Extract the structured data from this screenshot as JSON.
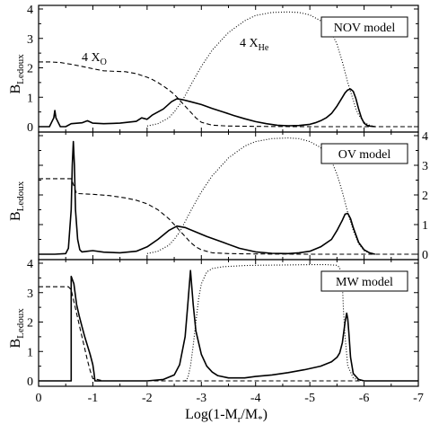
{
  "figure": {
    "ylabel_main": "B",
    "ylabel_sub": "Ledoux",
    "xlabel_pre": "Log(1-M",
    "xlabel_sub_r": "r",
    "xlabel_mid": "/M",
    "xlabel_sub_star": "*",
    "xlabel_post": ")",
    "annot_xo_main": "4 X",
    "annot_xo_sub": "O",
    "annot_xhe_main": "4 X",
    "annot_xhe_sub": "He"
  },
  "chart_data": [
    {
      "type": "line",
      "legend": "NOV model",
      "xlim": [
        0,
        -7
      ],
      "ylim": [
        0,
        4
      ],
      "yticks": [
        0,
        1,
        2,
        3,
        4
      ],
      "y_axis_side": "left",
      "series": [
        {
          "style": "solid",
          "x": [
            0,
            -0.2,
            -0.28,
            -0.3,
            -0.32,
            -0.4,
            -0.5,
            -0.6,
            -0.8,
            -0.9,
            -1.0,
            -1.2,
            -1.5,
            -1.8,
            -1.9,
            -2.0,
            -2.1,
            -2.3,
            -2.45,
            -2.55,
            -2.65,
            -2.8,
            -3.0,
            -3.2,
            -3.4,
            -3.6,
            -3.8,
            -4.0,
            -4.2,
            -4.4,
            -4.6,
            -4.8,
            -5.0,
            -5.1,
            -5.2,
            -5.3,
            -5.4,
            -5.5,
            -5.6,
            -5.65,
            -5.7,
            -5.75,
            -5.8,
            -5.85,
            -5.9,
            -5.95,
            -6.0,
            -6.05,
            -6.1,
            -6.2
          ],
          "y": [
            0,
            0,
            0.3,
            0.55,
            0.3,
            0,
            0,
            0.1,
            0.13,
            0.2,
            0.12,
            0.1,
            0.12,
            0.18,
            0.3,
            0.25,
            0.4,
            0.6,
            0.85,
            0.95,
            0.92,
            0.85,
            0.75,
            0.62,
            0.5,
            0.38,
            0.27,
            0.17,
            0.1,
            0.05,
            0.03,
            0.04,
            0.08,
            0.13,
            0.2,
            0.3,
            0.45,
            0.7,
            1.0,
            1.15,
            1.25,
            1.28,
            1.2,
            0.95,
            0.6,
            0.3,
            0.12,
            0.05,
            0.02,
            0
          ]
        },
        {
          "style": "dashed",
          "x": [
            0,
            -0.2,
            -0.4,
            -0.6,
            -0.8,
            -1.0,
            -1.2,
            -1.4,
            -1.6,
            -1.8,
            -2.0,
            -2.1,
            -2.2,
            -2.3,
            -2.4,
            -2.5,
            -2.6,
            -2.7,
            -2.8,
            -2.9,
            -3.0,
            -3.2,
            -3.5,
            -4.0,
            -5.0,
            -6.0,
            -7.0
          ],
          "y": [
            2.2,
            2.2,
            2.18,
            2.12,
            2.05,
            1.97,
            1.9,
            1.88,
            1.87,
            1.8,
            1.68,
            1.6,
            1.5,
            1.38,
            1.25,
            1.1,
            0.9,
            0.7,
            0.5,
            0.3,
            0.15,
            0.05,
            0.02,
            0.01,
            0,
            0,
            0
          ]
        },
        {
          "style": "dotted",
          "x": [
            -2.0,
            -2.2,
            -2.4,
            -2.5,
            -2.6,
            -2.7,
            -2.8,
            -3.0,
            -3.2,
            -3.5,
            -3.8,
            -4.0,
            -4.3,
            -4.6,
            -4.8,
            -5.0,
            -5.2,
            -5.4,
            -5.5,
            -5.6,
            -5.7,
            -5.8,
            -5.85,
            -5.9,
            -6.0,
            -6.1,
            -6.2
          ],
          "y": [
            0.02,
            0.1,
            0.3,
            0.5,
            0.75,
            1.05,
            1.4,
            2.05,
            2.6,
            3.2,
            3.6,
            3.78,
            3.88,
            3.9,
            3.88,
            3.8,
            3.6,
            3.2,
            2.8,
            2.2,
            1.5,
            0.9,
            0.6,
            0.4,
            0.15,
            0.05,
            0
          ]
        }
      ]
    },
    {
      "type": "line",
      "legend": "OV model",
      "xlim": [
        0,
        -7
      ],
      "ylim": [
        0,
        4
      ],
      "yticks": [
        0,
        1,
        2,
        3,
        4
      ],
      "y_axis_side": "right",
      "series": [
        {
          "style": "solid",
          "x": [
            0,
            -0.3,
            -0.5,
            -0.55,
            -0.6,
            -0.62,
            -0.64,
            -0.66,
            -0.68,
            -0.72,
            -0.76,
            -0.8,
            -0.9,
            -1.0,
            -1.2,
            -1.5,
            -1.8,
            -2.0,
            -2.2,
            -2.4,
            -2.55,
            -2.7,
            -2.9,
            -3.1,
            -3.4,
            -3.7,
            -4.0,
            -4.3,
            -4.6,
            -4.8,
            -5.0,
            -5.2,
            -5.4,
            -5.5,
            -5.6,
            -5.65,
            -5.7,
            -5.75,
            -5.8,
            -5.9,
            -6.0,
            -6.1,
            -6.2
          ],
          "y": [
            0,
            0,
            0.02,
            0.2,
            1.5,
            3.0,
            3.8,
            3.0,
            1.5,
            0.5,
            0.15,
            0.08,
            0.1,
            0.12,
            0.07,
            0.05,
            0.1,
            0.25,
            0.5,
            0.8,
            0.95,
            0.9,
            0.75,
            0.6,
            0.4,
            0.2,
            0.08,
            0.03,
            0.02,
            0.05,
            0.1,
            0.25,
            0.5,
            0.8,
            1.15,
            1.35,
            1.38,
            1.2,
            0.9,
            0.4,
            0.15,
            0.05,
            0
          ]
        },
        {
          "style": "dashed",
          "x": [
            0,
            -0.3,
            -0.6,
            -0.65,
            -0.7,
            -1.0,
            -1.3,
            -1.6,
            -1.8,
            -2.0,
            -2.1,
            -2.2,
            -2.3,
            -2.4,
            -2.5,
            -2.6,
            -2.7,
            -2.8,
            -2.9,
            -3.0,
            -3.2,
            -3.5,
            -4.0,
            -5.0,
            -7.0
          ],
          "y": [
            2.55,
            2.55,
            2.55,
            2.3,
            2.05,
            2.02,
            1.98,
            1.9,
            1.82,
            1.7,
            1.6,
            1.5,
            1.35,
            1.2,
            1.0,
            0.8,
            0.6,
            0.4,
            0.25,
            0.15,
            0.05,
            0.02,
            0.01,
            0,
            0
          ]
        },
        {
          "style": "dotted",
          "x": [
            -2.0,
            -2.2,
            -2.4,
            -2.5,
            -2.6,
            -2.7,
            -2.8,
            -3.0,
            -3.2,
            -3.5,
            -3.8,
            -4.0,
            -4.3,
            -4.6,
            -4.8,
            -5.0,
            -5.2,
            -5.4,
            -5.5,
            -5.6,
            -5.7,
            -5.8,
            -5.9,
            -6.0,
            -6.1,
            -6.2
          ],
          "y": [
            0.02,
            0.1,
            0.3,
            0.5,
            0.75,
            1.1,
            1.45,
            2.1,
            2.65,
            3.25,
            3.65,
            3.8,
            3.9,
            3.92,
            3.9,
            3.8,
            3.6,
            3.15,
            2.7,
            2.1,
            1.4,
            0.8,
            0.35,
            0.12,
            0.04,
            0
          ]
        }
      ]
    },
    {
      "type": "line",
      "legend": "MW model",
      "xlim": [
        0,
        -7
      ],
      "ylim": [
        0,
        4
      ],
      "yticks": [
        0,
        1,
        2,
        3,
        4
      ],
      "y_axis_side": "left",
      "series": [
        {
          "style": "solid",
          "x": [
            0,
            -0.3,
            -0.5,
            -0.6,
            -0.6,
            -0.65,
            -0.7,
            -0.75,
            -0.8,
            -0.85,
            -0.9,
            -0.95,
            -1.0,
            -1.02,
            -1.04,
            -1.1,
            -1.5,
            -2.0,
            -2.3,
            -2.5,
            -2.6,
            -2.7,
            -2.75,
            -2.8,
            -2.85,
            -2.9,
            -3.0,
            -3.1,
            -3.2,
            -3.3,
            -3.5,
            -3.8,
            -4.0,
            -4.3,
            -4.6,
            -4.9,
            -5.2,
            -5.4,
            -5.5,
            -5.55,
            -5.6,
            -5.65,
            -5.68,
            -5.7,
            -5.72,
            -5.75,
            -5.8,
            -5.9,
            -6.0,
            -6.2,
            -7.0
          ],
          "y": [
            0,
            0,
            0,
            0,
            3.55,
            3.3,
            2.6,
            2.2,
            1.85,
            1.5,
            1.2,
            0.9,
            0.55,
            0.3,
            0,
            0,
            0,
            0,
            0.05,
            0.2,
            0.55,
            1.5,
            2.6,
            3.75,
            2.6,
            1.7,
            0.9,
            0.5,
            0.3,
            0.18,
            0.1,
            0.1,
            0.15,
            0.2,
            0.28,
            0.38,
            0.5,
            0.65,
            0.8,
            0.95,
            1.3,
            2.0,
            2.3,
            2.1,
            1.6,
            0.8,
            0.25,
            0.05,
            0,
            0,
            0
          ]
        },
        {
          "style": "dashed",
          "x": [
            0,
            -0.3,
            -0.55,
            -0.6,
            -0.65,
            -0.7,
            -0.75,
            -0.8,
            -0.85,
            -0.9,
            -0.95,
            -1.0,
            -1.2,
            -2.0,
            -4.0,
            -7.0
          ],
          "y": [
            3.2,
            3.2,
            3.2,
            3.1,
            2.7,
            2.3,
            1.9,
            1.5,
            1.1,
            0.7,
            0.35,
            0.08,
            0,
            0,
            0,
            0
          ]
        },
        {
          "style": "dotted",
          "x": [
            -2.7,
            -2.75,
            -2.8,
            -2.85,
            -2.9,
            -2.95,
            -3.0,
            -3.1,
            -3.2,
            -3.4,
            -3.6,
            -3.8,
            -4.0,
            -4.5,
            -5.0,
            -5.3,
            -5.5,
            -5.55,
            -5.6,
            -5.62,
            -5.65,
            -5.7,
            -5.8,
            -5.9,
            -6.0
          ],
          "y": [
            0,
            0.1,
            0.5,
            1.2,
            2.0,
            2.8,
            3.3,
            3.7,
            3.82,
            3.88,
            3.9,
            3.92,
            3.93,
            3.94,
            3.95,
            3.95,
            3.93,
            3.85,
            3.3,
            2.4,
            1.5,
            0.5,
            0.1,
            0.02,
            0
          ]
        }
      ]
    }
  ],
  "x_axis": {
    "ticks": [
      0,
      -1,
      -2,
      -3,
      -4,
      -5,
      -6,
      -7
    ],
    "ticklabels": [
      "0",
      "-1",
      "-2",
      "-3",
      "-4",
      "-5",
      "-6",
      "-7"
    ]
  }
}
